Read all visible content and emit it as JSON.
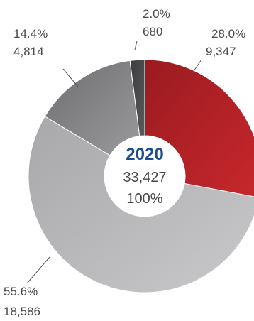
{
  "chart_data": {
    "type": "donut",
    "slices": [
      {
        "percent": "28.0%",
        "value": 9347,
        "value_label": "9,347",
        "share": 28.0,
        "color_start": "#9a1b20",
        "color_end": "#c8282c"
      },
      {
        "percent": "55.6%",
        "value": 18586,
        "value_label": "18,586",
        "share": 55.6,
        "color_start": "#a8a8aa",
        "color_end": "#c9c9cb"
      },
      {
        "percent": "14.4%",
        "value": 4814,
        "value_label": "4,814",
        "share": 14.4,
        "color_start": "#6e6e70",
        "color_end": "#9a9a9c"
      },
      {
        "percent": "2.0%",
        "value": 680,
        "value_label": "680",
        "share": 2.0,
        "color_start": "#3c3c3e",
        "color_end": "#5a5a5c"
      }
    ],
    "center": {
      "year": "2020",
      "total": "33,427",
      "total_percent": "100%"
    }
  }
}
